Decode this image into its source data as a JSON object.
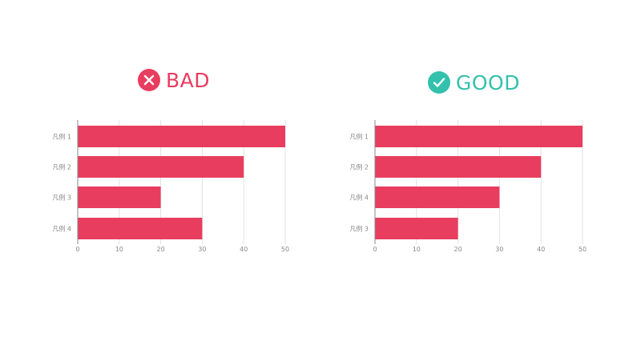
{
  "colors": {
    "bad": "#e83d5f",
    "good": "#33c1ad",
    "bar": "#e83d5f",
    "grid": "#e2e2e2",
    "axis": "#888888",
    "tick_text": "#888888"
  },
  "panels": [
    {
      "id": "bad",
      "heading": "BAD",
      "icon": "x-mark-icon",
      "color": "#e83d5f"
    },
    {
      "id": "good",
      "heading": "GOOD",
      "icon": "check-mark-icon",
      "color": "#33c1ad"
    }
  ],
  "chart_data": [
    {
      "type": "bar",
      "orientation": "horizontal",
      "title": "",
      "xlabel": "",
      "ylabel": "",
      "categories": [
        "凡例 1",
        "凡例 2",
        "凡例 3",
        "凡例 4"
      ],
      "values": [
        50,
        40,
        20,
        30
      ],
      "xlim": [
        0,
        50
      ],
      "x_ticks": [
        0,
        10,
        20,
        30,
        40,
        50
      ],
      "grid": true,
      "legend": "none"
    },
    {
      "type": "bar",
      "orientation": "horizontal",
      "title": "",
      "xlabel": "",
      "ylabel": "",
      "categories": [
        "凡例 1",
        "凡例 2",
        "凡例 4",
        "凡例 3"
      ],
      "values": [
        50,
        40,
        30,
        20
      ],
      "xlim": [
        0,
        50
      ],
      "x_ticks": [
        0,
        10,
        20,
        30,
        40,
        50
      ],
      "grid": true,
      "legend": "none"
    }
  ]
}
